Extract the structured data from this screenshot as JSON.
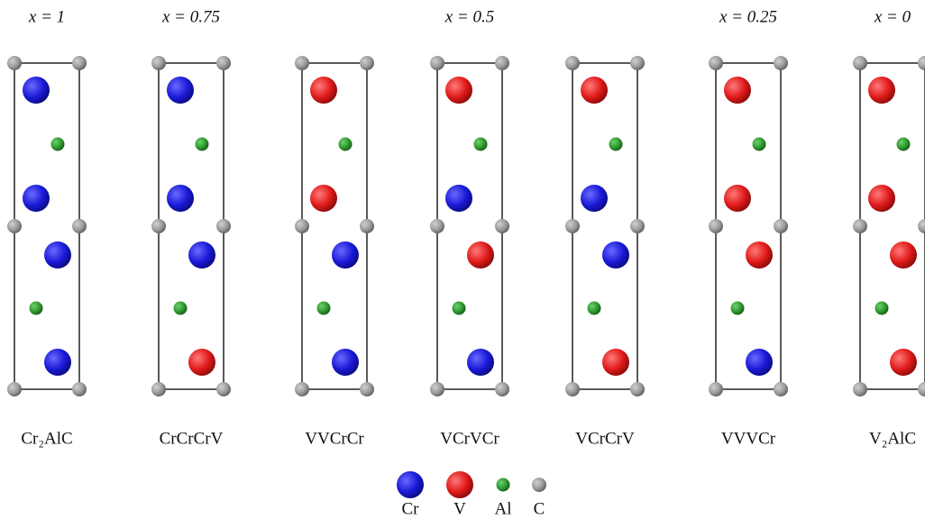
{
  "compositions": [
    "x = 1",
    "x = 0.75",
    "x = 0.5",
    "x = 0.25",
    "x = 0"
  ],
  "structures": [
    "Cr₂AlC",
    "CrCrCrV",
    "VVCrCr",
    "VCrVCr",
    "VCrCrV",
    "VVVCr",
    "V₂AlC"
  ],
  "legend": [
    "Cr",
    "V",
    "Al",
    "C"
  ]
}
